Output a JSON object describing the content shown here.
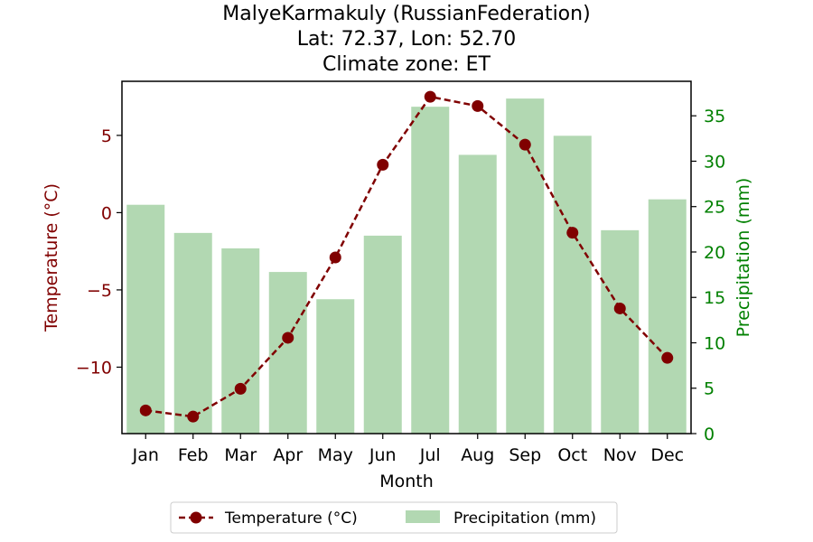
{
  "chart_data": {
    "type": "bar",
    "title": [
      "MalyeKarmakuly (RussianFederation)",
      "Lat: 72.37, Lon: 52.70",
      "Climate zone: ET"
    ],
    "xlabel": "Month",
    "ylabel_left": "Temperature (°C)",
    "ylabel_right": "Precipitation (mm)",
    "categories": [
      "Jan",
      "Feb",
      "Mar",
      "Apr",
      "May",
      "Jun",
      "Jul",
      "Aug",
      "Sep",
      "Oct",
      "Nov",
      "Dec"
    ],
    "series": [
      {
        "name": "Temperature (°C)",
        "kind": "line",
        "axis": "left",
        "color": "#800000",
        "values": [
          -12.8,
          -13.2,
          -11.4,
          -8.1,
          -2.9,
          3.1,
          7.5,
          6.9,
          4.4,
          -1.3,
          -6.2,
          -9.4
        ]
      },
      {
        "name": "Precipitation (mm)",
        "kind": "bar",
        "axis": "right",
        "color": "#b2d8b2",
        "values": [
          25.2,
          22.1,
          20.4,
          17.8,
          14.8,
          21.8,
          36.0,
          30.7,
          36.9,
          32.8,
          22.4,
          25.8
        ]
      }
    ],
    "ylim_left": [
      -14.3,
      8.5
    ],
    "yticks_left": [
      -10,
      -5,
      0,
      5
    ],
    "ylim_right": [
      0,
      38.8
    ],
    "yticks_right": [
      0,
      5,
      10,
      15,
      20,
      25,
      30,
      35
    ],
    "left_axis_color": "#800000",
    "right_axis_color": "#008000",
    "grid": false,
    "legend": {
      "placement": "bottom-center",
      "entries": [
        "Temperature (°C)",
        "Precipitation (mm)"
      ]
    }
  }
}
